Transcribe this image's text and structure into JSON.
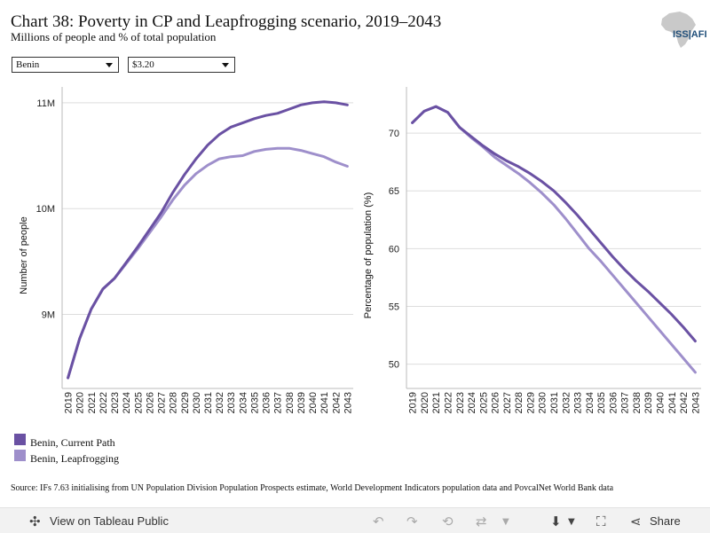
{
  "header": {
    "title": "Chart 38: Poverty in CP and Leapfrogging scenario, 2019–2043",
    "subtitle": "Millions of people and % of total population",
    "logo_text": "ISS|AFI"
  },
  "filters": {
    "country": "Benin",
    "poverty_line": "$3.20"
  },
  "colors": {
    "current_path": "#6a51a3",
    "leapfrogging": "#9e8fcb",
    "grid": "#dddddd"
  },
  "legend": {
    "items": [
      {
        "label": "Benin, Current Path",
        "color": "#6a51a3"
      },
      {
        "label": "Benin, Leapfrogging",
        "color": "#9e8fcb"
      }
    ]
  },
  "source": "Source: IFs 7.63 initialising from UN Population Division Population Prospects estimate, World Development Indicators population data and PovcalNet World Bank data",
  "toolbar": {
    "view_label": "View on Tableau Public",
    "share_label": "Share"
  },
  "chart_data": [
    {
      "type": "line",
      "ylabel": "Number of people",
      "xlabel": "",
      "ylim": [
        8.3,
        11.15
      ],
      "yticks": [
        9,
        10,
        11
      ],
      "ytick_labels": [
        "9M",
        "10M",
        "11M"
      ],
      "grid": true,
      "x": [
        "2019",
        "2020",
        "2021",
        "2022",
        "2023",
        "2024",
        "2025",
        "2026",
        "2027",
        "2028",
        "2029",
        "2030",
        "2031",
        "2032",
        "2033",
        "2034",
        "2035",
        "2036",
        "2037",
        "2038",
        "2039",
        "2040",
        "2041",
        "2042",
        "2043"
      ],
      "series": [
        {
          "name": "Benin, Current Path",
          "values": [
            8.4,
            8.77,
            9.05,
            9.24,
            9.34,
            9.49,
            9.64,
            9.8,
            9.96,
            10.15,
            10.32,
            10.47,
            10.6,
            10.7,
            10.77,
            10.81,
            10.85,
            10.88,
            10.9,
            10.94,
            10.98,
            11.0,
            11.01,
            11.0,
            10.98
          ]
        },
        {
          "name": "Benin, Leapfrogging",
          "values": [
            8.4,
            8.77,
            9.05,
            9.24,
            9.34,
            9.48,
            9.62,
            9.77,
            9.92,
            10.08,
            10.22,
            10.33,
            10.41,
            10.47,
            10.49,
            10.5,
            10.54,
            10.56,
            10.57,
            10.57,
            10.55,
            10.52,
            10.49,
            10.44,
            10.4
          ]
        }
      ]
    },
    {
      "type": "line",
      "ylabel": "Percentage of population (%)",
      "xlabel": "",
      "ylim": [
        47.9,
        74.0
      ],
      "yticks": [
        50,
        55,
        60,
        65,
        70
      ],
      "ytick_labels": [
        "50",
        "55",
        "60",
        "65",
        "70"
      ],
      "grid": true,
      "x": [
        "2019",
        "2020",
        "2021",
        "2022",
        "2023",
        "2024",
        "2025",
        "2026",
        "2027",
        "2028",
        "2029",
        "2030",
        "2031",
        "2032",
        "2033",
        "2034",
        "2035",
        "2036",
        "2037",
        "2038",
        "2039",
        "2040",
        "2041",
        "2042",
        "2043"
      ],
      "series": [
        {
          "name": "Benin, Current Path",
          "values": [
            70.9,
            71.9,
            72.3,
            71.8,
            70.5,
            69.7,
            68.9,
            68.2,
            67.6,
            67.1,
            66.5,
            65.8,
            65.0,
            64.0,
            62.9,
            61.7,
            60.5,
            59.3,
            58.2,
            57.2,
            56.3,
            55.3,
            54.3,
            53.2,
            52.0
          ]
        },
        {
          "name": "Benin, Leapfrogging",
          "values": [
            70.9,
            71.9,
            72.3,
            71.8,
            70.5,
            69.6,
            68.8,
            67.9,
            67.2,
            66.5,
            65.7,
            64.8,
            63.8,
            62.6,
            61.3,
            60.0,
            58.9,
            57.7,
            56.5,
            55.3,
            54.1,
            52.9,
            51.7,
            50.5,
            49.3
          ]
        }
      ]
    }
  ]
}
